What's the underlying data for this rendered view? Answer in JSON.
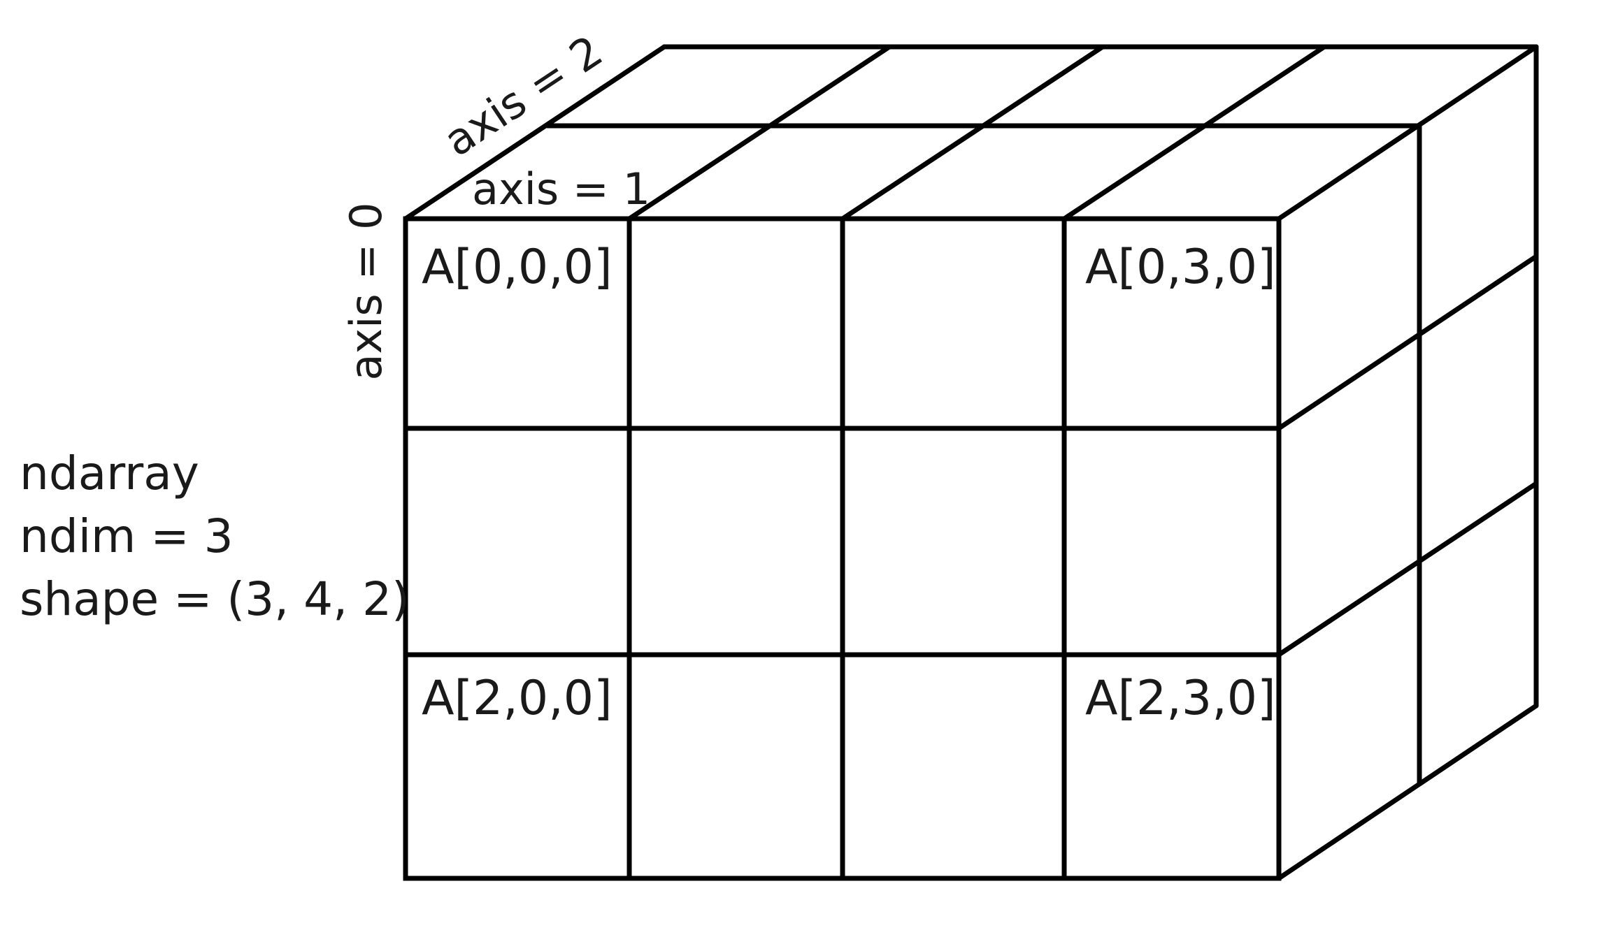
{
  "figure": {
    "info_lines": [
      "ndarray",
      "ndim = 3",
      "shape = (3, 4, 2)"
    ],
    "axis_labels": {
      "axis0": "axis = 0",
      "axis1": "axis = 1",
      "axis2": "axis = 2"
    },
    "cell_labels": {
      "a000": "A[0,0,0]",
      "a030": "A[0,3,0]",
      "a200": "A[2,0,0]",
      "a230": "A[2,3,0]"
    },
    "colors": {
      "line": "#000000",
      "text": "#1a1a1a",
      "background": "#ffffff"
    }
  },
  "chart_data": {
    "type": "diagram",
    "title": "ndarray",
    "ndim": 3,
    "shape": [
      3,
      4,
      2
    ],
    "axes": [
      {
        "name": "axis = 0",
        "size": 3
      },
      {
        "name": "axis = 1",
        "size": 4
      },
      {
        "name": "axis = 2",
        "size": 2
      }
    ],
    "labeled_cells": [
      "A[0,0,0]",
      "A[0,3,0]",
      "A[2,0,0]",
      "A[2,3,0]"
    ]
  }
}
